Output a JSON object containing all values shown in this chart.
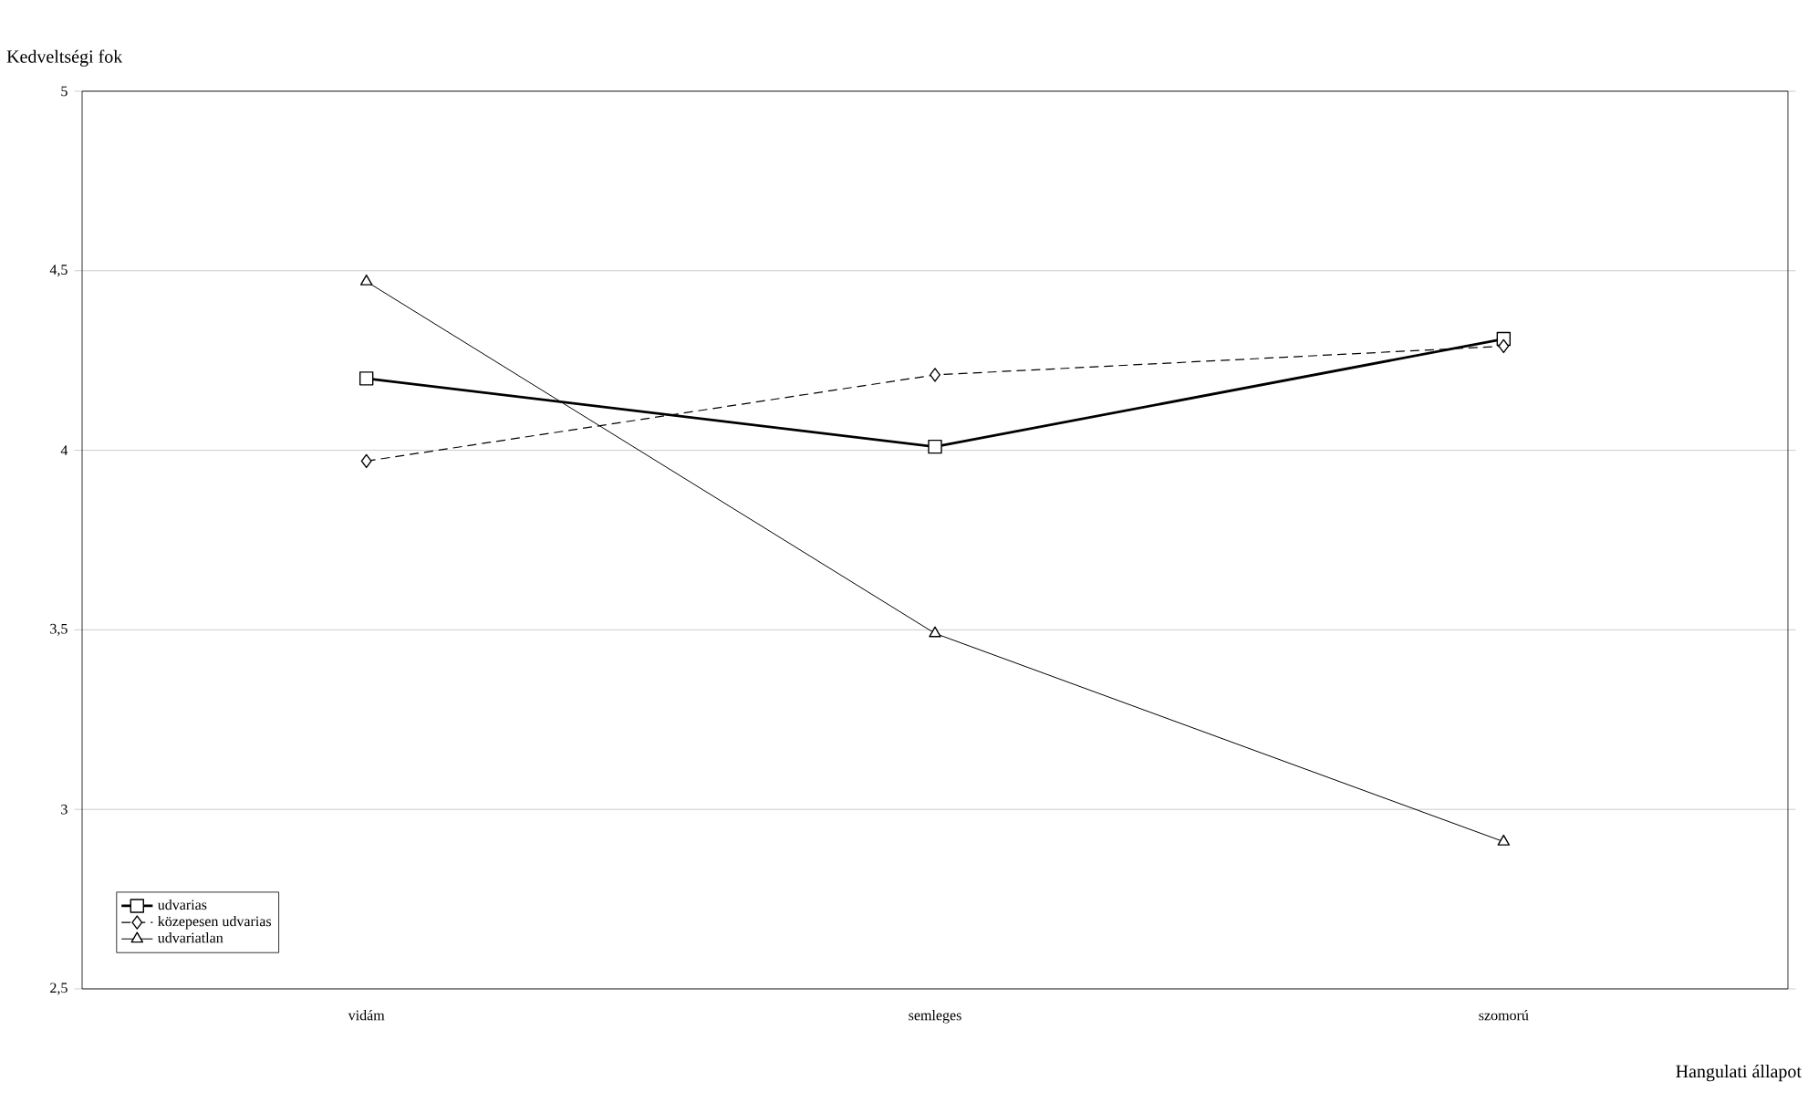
{
  "chart_data": {
    "type": "line",
    "xlabel": "Hangulati állapot",
    "ylabel": "Kedveltségi fok",
    "categories": [
      "vidám",
      "semleges",
      "szomorú"
    ],
    "series": [
      {
        "name": "udvarias",
        "color": "#000000",
        "values": [
          4.2,
          4.01,
          4.31
        ],
        "marker": "square",
        "line_style": "solid"
      },
      {
        "name": "közepesen udvarias",
        "color": "#000000",
        "values": [
          3.97,
          4.21,
          4.29
        ],
        "marker": "diamond",
        "line_style": "dashed"
      },
      {
        "name": "udvariatlan",
        "color": "#000000",
        "values": [
          4.47,
          3.49,
          2.91
        ],
        "marker": "triangle",
        "line_style": "solid"
      }
    ],
    "ylim": [
      2.5,
      5
    ],
    "yticks": [
      {
        "value": 2.5,
        "label": "2,5"
      },
      {
        "value": 3,
        "label": "3"
      },
      {
        "value": 3.5,
        "label": "3,5"
      },
      {
        "value": 4,
        "label": "4"
      },
      {
        "value": 4.5,
        "label": "4,5"
      },
      {
        "value": 5,
        "label": "5"
      }
    ],
    "grid": "y",
    "legend": "bottom left"
  }
}
